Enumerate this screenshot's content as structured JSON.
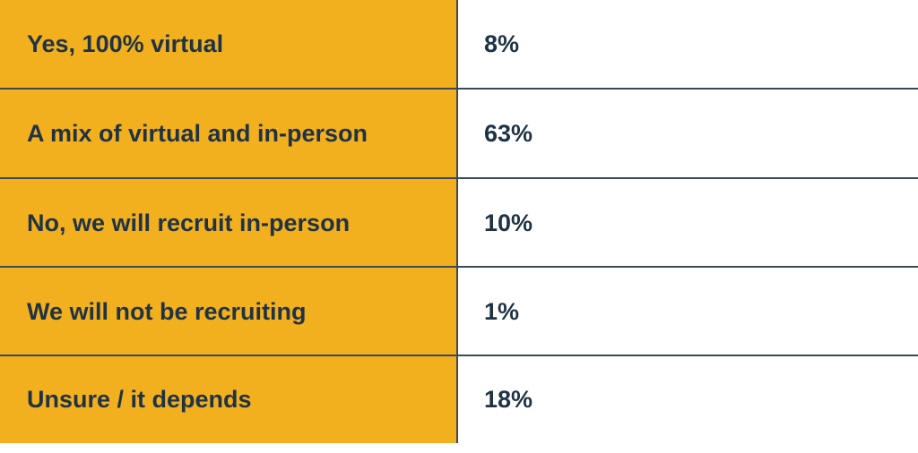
{
  "chart_data": {
    "type": "table",
    "rows": [
      {
        "label": "Yes, 100% virtual",
        "value": "8%"
      },
      {
        "label": "A mix of virtual and in-person",
        "value": "63%"
      },
      {
        "label": "No, we will recruit in-person",
        "value": "10%"
      },
      {
        "label": "We will not be recruiting",
        "value": "1%"
      },
      {
        "label": "Unsure / it depends",
        "value": "18%"
      }
    ]
  },
  "colors": {
    "label_background": "#F2AF1E",
    "text": "#1F3344",
    "rule": "#3C4A54"
  }
}
